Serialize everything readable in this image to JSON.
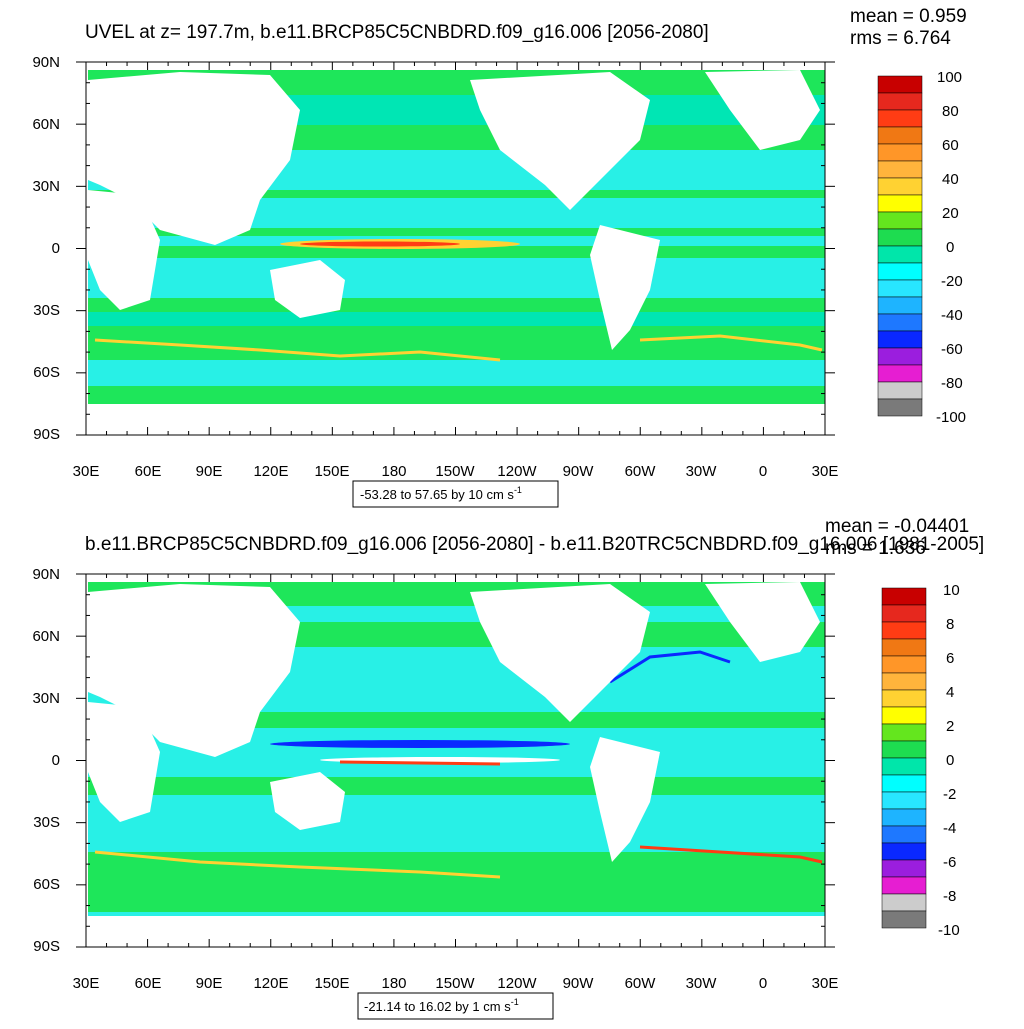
{
  "chart_data": [
    {
      "type": "heatmap",
      "title": "UVEL at z= 197.7m, b.e11.BRCP85C5CNBDRD.f09_g16.006 [2056-2080]",
      "stats": {
        "mean": "mean = 0.959",
        "rms": "rms = 6.764"
      },
      "contour_info": "-53.28 to 57.65 by 10 cm s",
      "contour_unit_exp": "-1",
      "x_ticks": [
        "30E",
        "60E",
        "90E",
        "120E",
        "150E",
        "180",
        "150W",
        "120W",
        "90W",
        "60W",
        "30W",
        "0",
        "30E"
      ],
      "y_ticks": [
        "90N",
        "60N",
        "30N",
        "0",
        "30S",
        "60S",
        "90S"
      ],
      "colorbar_labels": [
        "100",
        "80",
        "60",
        "40",
        "20",
        "0",
        "-20",
        "-40",
        "-60",
        "-80",
        "-100"
      ],
      "colorbar_colors": [
        "#c80000",
        "#e6281e",
        "#ff3c14",
        "#f07814",
        "#ff9628",
        "#ffb43c",
        "#ffd232",
        "#ffff00",
        "#64e61e",
        "#1edc50",
        "#00e6aa",
        "#00ffff",
        "#28e6ff",
        "#1eb4ff",
        "#1e78ff",
        "#0a28ff",
        "#9b1ede",
        "#e61ed2",
        "#cccccc",
        "#7a7a7a"
      ],
      "field_colors": {
        "ocean": "#1ee65a",
        "ocean_alt": "#00e6b4",
        "neg": "#28f0e6",
        "pos": "#64e61e",
        "jet_pos": "#ffd232",
        "jet_hi": "#ff3c14",
        "land": "#ffffff"
      }
    },
    {
      "type": "heatmap",
      "title": "b.e11.BRCP85C5CNBDRD.f09_g16.006 [2056-2080] - b.e11.B20TRC5CNBDRD.f09_g16.006 [1981-2005]",
      "stats": {
        "mean": "mean = -0.04401",
        "rms": "rms = 1.636"
      },
      "contour_info": "-21.14 to 16.02 by 1 cm s",
      "contour_unit_exp": "-1",
      "x_ticks": [
        "30E",
        "60E",
        "90E",
        "120E",
        "150E",
        "180",
        "150W",
        "120W",
        "90W",
        "60W",
        "30W",
        "0",
        "30E"
      ],
      "y_ticks": [
        "90N",
        "60N",
        "30N",
        "0",
        "30S",
        "60S",
        "90S"
      ],
      "colorbar_labels": [
        "10",
        "8",
        "6",
        "4",
        "2",
        "0",
        "-2",
        "-4",
        "-6",
        "-8",
        "-10"
      ],
      "colorbar_colors": [
        "#c80000",
        "#e6281e",
        "#ff3c14",
        "#f07814",
        "#ff9628",
        "#ffb43c",
        "#ffd232",
        "#ffff00",
        "#64e61e",
        "#1edc50",
        "#00e6aa",
        "#00ffff",
        "#28e6ff",
        "#1eb4ff",
        "#1e78ff",
        "#0a28ff",
        "#9b1ede",
        "#e61ed2",
        "#cccccc",
        "#7a7a7a"
      ],
      "field_colors": {
        "ocean": "#28f0e6",
        "ocean_alt": "#00e6b4",
        "neg": "#00ffff",
        "pos": "#1ee65a",
        "jet_pos": "#ffd232",
        "jet_hi": "#ff3c14",
        "land": "#ffffff"
      }
    }
  ]
}
